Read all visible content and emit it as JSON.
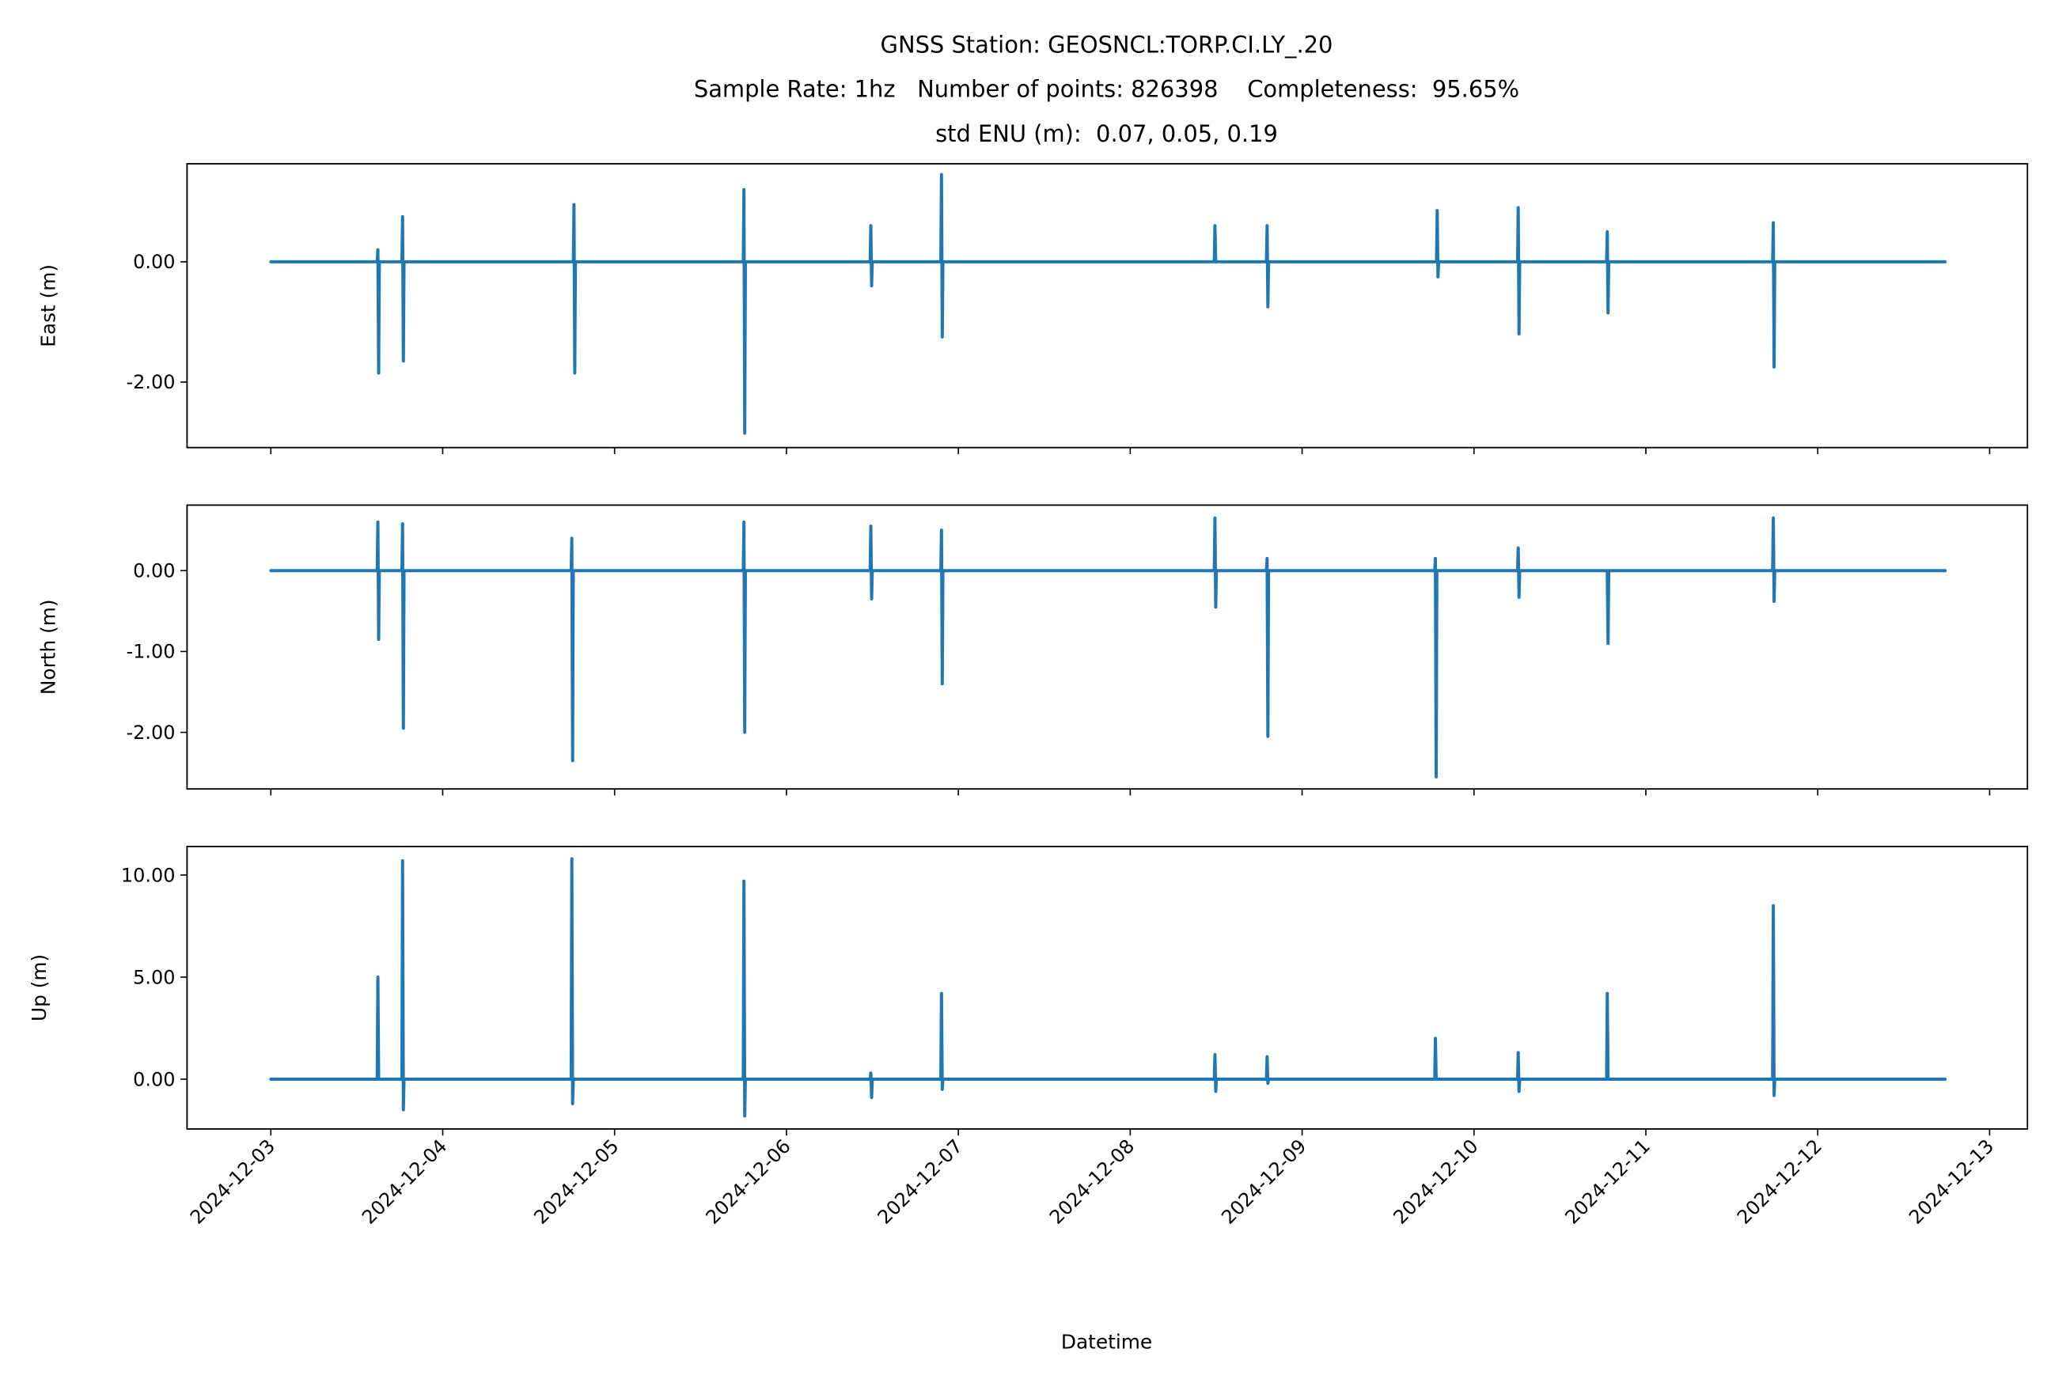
{
  "chart_data": {
    "type": "line",
    "title_lines": [
      "GNSS Station: GEOSNCL:TORP.CI.LY_.20",
      "Sample Rate: 1hz   Number of points: 826398    Completeness:  95.65%",
      "std ENU (m):  0.07, 0.05, 0.19"
    ],
    "xlabel": "Datetime",
    "x_range": [
      "2024-12-02T12:18",
      "2024-12-13T05:17"
    ],
    "x_ticks": [
      "2024-12-03",
      "2024-12-04",
      "2024-12-05",
      "2024-12-06",
      "2024-12-07",
      "2024-12-08",
      "2024-12-09",
      "2024-12-10",
      "2024-12-11",
      "2024-12-12",
      "2024-12-13"
    ],
    "data_start": "2024-12-03T00:00",
    "data_end": "2024-12-12T17:47",
    "line_color": "#1f77b4",
    "grid": false,
    "panels": [
      {
        "ylabel": "East (m)",
        "ylim": [
          -3.09,
          1.63
        ],
        "y_ticks": [
          0,
          -2
        ],
        "y_tick_labels": [
          "0.00",
          "-2.00"
        ],
        "spikes": [
          {
            "t": "2024-12-03T15:00",
            "max": 0.2,
            "min": -1.85
          },
          {
            "t": "2024-12-03T18:27",
            "max": 0.75,
            "min": -1.65
          },
          {
            "t": "2024-12-04T18:23",
            "max": 0.95,
            "min": -1.85
          },
          {
            "t": "2024-12-05T18:07",
            "max": 1.2,
            "min": -2.85
          },
          {
            "t": "2024-12-06T11:50",
            "max": 0.6,
            "min": -0.4
          },
          {
            "t": "2024-12-06T21:42",
            "max": 1.45,
            "min": -1.25
          },
          {
            "t": "2024-12-08T11:53",
            "max": 0.6,
            "min": 0.0
          },
          {
            "t": "2024-12-08T19:10",
            "max": 0.6,
            "min": -0.75
          },
          {
            "t": "2024-12-09T18:55",
            "max": 0.85,
            "min": -0.25
          },
          {
            "t": "2024-12-10T06:14",
            "max": 0.9,
            "min": -1.2
          },
          {
            "t": "2024-12-10T18:40",
            "max": 0.5,
            "min": -0.85
          },
          {
            "t": "2024-12-11T17:51",
            "max": 0.65,
            "min": -1.75
          }
        ]
      },
      {
        "ylabel": "North (m)",
        "ylim": [
          -2.7,
          0.81
        ],
        "y_ticks": [
          0,
          -1,
          -2
        ],
        "y_tick_labels": [
          "0.00",
          "-1.00",
          "-2.00"
        ],
        "spikes": [
          {
            "t": "2024-12-03T15:00",
            "max": 0.6,
            "min": -0.85
          },
          {
            "t": "2024-12-03T18:27",
            "max": 0.58,
            "min": -1.95
          },
          {
            "t": "2024-12-04T18:05",
            "max": 0.4,
            "min": -2.35
          },
          {
            "t": "2024-12-05T18:07",
            "max": 0.6,
            "min": -2.0
          },
          {
            "t": "2024-12-06T11:50",
            "max": 0.55,
            "min": -0.35
          },
          {
            "t": "2024-12-06T21:42",
            "max": 0.5,
            "min": -1.4
          },
          {
            "t": "2024-12-08T11:53",
            "max": 0.65,
            "min": -0.45
          },
          {
            "t": "2024-12-08T19:10",
            "max": 0.15,
            "min": -2.05
          },
          {
            "t": "2024-12-09T18:40",
            "max": 0.15,
            "min": -2.55
          },
          {
            "t": "2024-12-10T06:14",
            "max": 0.28,
            "min": -0.33
          },
          {
            "t": "2024-12-10T18:40",
            "max": 0.0,
            "min": -0.9
          },
          {
            "t": "2024-12-11T17:51",
            "max": 0.65,
            "min": -0.38
          }
        ]
      },
      {
        "ylabel": "Up (m)",
        "ylim": [
          -2.44,
          11.4
        ],
        "y_ticks": [
          10,
          5,
          0
        ],
        "y_tick_labels": [
          "10.00",
          "5.00",
          "0.00"
        ],
        "spikes": [
          {
            "t": "2024-12-03T15:00",
            "max": 5.0,
            "min": 0.0
          },
          {
            "t": "2024-12-03T18:27",
            "max": 10.7,
            "min": -1.5
          },
          {
            "t": "2024-12-04T18:05",
            "max": 10.8,
            "min": -1.2
          },
          {
            "t": "2024-12-05T18:07",
            "max": 9.7,
            "min": -1.8
          },
          {
            "t": "2024-12-06T11:50",
            "max": 0.3,
            "min": -0.9
          },
          {
            "t": "2024-12-06T21:42",
            "max": 4.2,
            "min": -0.5
          },
          {
            "t": "2024-12-08T11:53",
            "max": 1.2,
            "min": -0.6
          },
          {
            "t": "2024-12-08T19:10",
            "max": 1.1,
            "min": -0.2
          },
          {
            "t": "2024-12-09T18:40",
            "max": 2.0,
            "min": 0.0
          },
          {
            "t": "2024-12-10T06:14",
            "max": 1.3,
            "min": -0.6
          },
          {
            "t": "2024-12-10T18:40",
            "max": 4.2,
            "min": 0.0
          },
          {
            "t": "2024-12-11T17:51",
            "max": 8.5,
            "min": -0.8
          }
        ]
      }
    ]
  }
}
